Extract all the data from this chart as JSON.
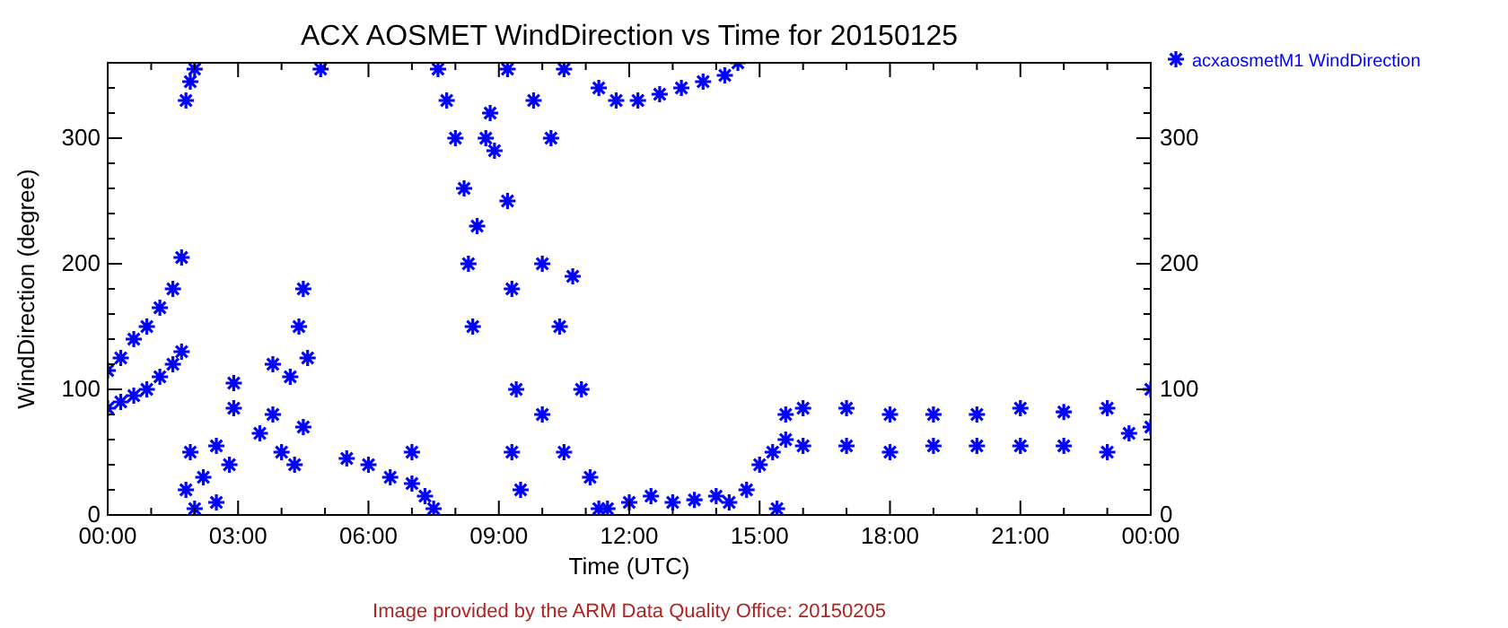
{
  "chart_data": {
    "type": "scatter",
    "title": "ACX AOSMET WindDirection vs Time for 20150125",
    "xlabel": "Time (UTC)",
    "ylabel": "WindDirection (degree)",
    "xlim": [
      0,
      24
    ],
    "xticks": [
      {
        "value": 0,
        "label": "00:00"
      },
      {
        "value": 1,
        "label": null
      },
      {
        "value": 2,
        "label": null
      },
      {
        "value": 3,
        "label": "03:00"
      },
      {
        "value": 4,
        "label": null
      },
      {
        "value": 5,
        "label": null
      },
      {
        "value": 6,
        "label": "06:00"
      },
      {
        "value": 7,
        "label": null
      },
      {
        "value": 8,
        "label": null
      },
      {
        "value": 9,
        "label": "09:00"
      },
      {
        "value": 10,
        "label": null
      },
      {
        "value": 11,
        "label": null
      },
      {
        "value": 12,
        "label": "12:00"
      },
      {
        "value": 13,
        "label": null
      },
      {
        "value": 14,
        "label": null
      },
      {
        "value": 15,
        "label": "15:00"
      },
      {
        "value": 16,
        "label": null
      },
      {
        "value": 17,
        "label": null
      },
      {
        "value": 18,
        "label": "18:00"
      },
      {
        "value": 19,
        "label": null
      },
      {
        "value": 20,
        "label": null
      },
      {
        "value": 21,
        "label": "21:00"
      },
      {
        "value": 22,
        "label": null
      },
      {
        "value": 23,
        "label": null
      },
      {
        "value": 24,
        "label": "00:00"
      }
    ],
    "ylim": [
      0,
      360
    ],
    "yticks": [
      0,
      {
        "value": 20,
        "label": null
      },
      {
        "value": 40,
        "label": null
      },
      {
        "value": 60,
        "label": null
      },
      {
        "value": 80,
        "label": null
      },
      100,
      {
        "value": 120,
        "label": null
      },
      {
        "value": 140,
        "label": null
      },
      {
        "value": 160,
        "label": null
      },
      {
        "value": 180,
        "label": null
      },
      200,
      {
        "value": 220,
        "label": null
      },
      {
        "value": 240,
        "label": null
      },
      {
        "value": 260,
        "label": null
      },
      {
        "value": 280,
        "label": null
      },
      300,
      {
        "value": 320,
        "label": null
      },
      {
        "value": 340,
        "label": null
      }
    ],
    "y2lim": [
      0,
      360
    ],
    "y2ticks": [
      0,
      {
        "value": 20,
        "label": null
      },
      {
        "value": 40,
        "label": null
      },
      {
        "value": 60,
        "label": null
      },
      {
        "value": 80,
        "label": null
      },
      100,
      {
        "value": 120,
        "label": null
      },
      {
        "value": 140,
        "label": null
      },
      {
        "value": 160,
        "label": null
      },
      {
        "value": 180,
        "label": null
      },
      200,
      {
        "value": 220,
        "label": null
      },
      {
        "value": 240,
        "label": null
      },
      {
        "value": 260,
        "label": null
      },
      {
        "value": 280,
        "label": null
      },
      300,
      {
        "value": 320,
        "label": null
      },
      {
        "value": 340,
        "label": null
      }
    ],
    "marker": "cross",
    "legend": "top right",
    "annotations": [
      "Image provided by the ARM Data Quality Office: 20150205"
    ],
    "series": [
      {
        "name": "acxaosmetM1 WindDirection",
        "color": "#0000ff",
        "x": [
          0,
          0,
          0.3,
          0.3,
          0.6,
          0.6,
          0.9,
          0.9,
          1.2,
          1.2,
          1.5,
          1.5,
          1.7,
          1.7,
          1.8,
          1.9,
          2.0,
          1.8,
          1.9,
          2.0,
          2.2,
          2.5,
          2.8,
          2.9,
          2.9,
          2.5,
          3.5,
          3.8,
          4.0,
          4.3,
          4.5,
          4.5,
          4.4,
          4.6,
          4.2,
          3.8,
          4.9,
          5.5,
          6.0,
          6.5,
          7.0,
          7.0,
          7.3,
          7.5,
          7.6,
          7.8,
          8.0,
          8.2,
          8.3,
          8.4,
          8.5,
          8.7,
          8.8,
          8.9,
          9.2,
          9.2,
          9.3,
          9.4,
          9.3,
          9.5,
          9.8,
          10.0,
          10.0,
          10.2,
          10.4,
          10.5,
          10.5,
          10.7,
          10.9,
          11.1,
          11.3,
          11.3,
          11.7,
          12.2,
          12.7,
          13.2,
          13.7,
          14.2,
          14.5,
          11.5,
          12.0,
          12.5,
          13.0,
          13.5,
          14.0,
          14.3,
          14.7,
          15.0,
          15.3,
          15.4,
          15.6,
          15.6,
          16,
          16,
          17,
          17,
          18,
          18,
          19,
          19,
          20,
          20,
          21,
          21,
          22,
          22,
          23,
          23,
          23.5,
          24,
          24
        ],
        "values": [
          85,
          115,
          90,
          125,
          95,
          140,
          100,
          150,
          110,
          165,
          120,
          180,
          130,
          205,
          330,
          345,
          355,
          20,
          50,
          5,
          30,
          55,
          40,
          105,
          85,
          10,
          65,
          80,
          50,
          40,
          70,
          180,
          150,
          125,
          110,
          120,
          355,
          45,
          40,
          30,
          25,
          50,
          15,
          5,
          355,
          330,
          300,
          260,
          200,
          150,
          230,
          300,
          320,
          290,
          355,
          250,
          180,
          100,
          50,
          20,
          330,
          200,
          80,
          300,
          150,
          50,
          355,
          190,
          100,
          30,
          5,
          340,
          330,
          330,
          335,
          340,
          345,
          350,
          360,
          5,
          10,
          15,
          10,
          12,
          15,
          10,
          20,
          40,
          50,
          5,
          60,
          80,
          55,
          85,
          55,
          85,
          50,
          80,
          55,
          80,
          55,
          80,
          55,
          85,
          55,
          82,
          50,
          85,
          65,
          70,
          100
        ]
      }
    ]
  }
}
